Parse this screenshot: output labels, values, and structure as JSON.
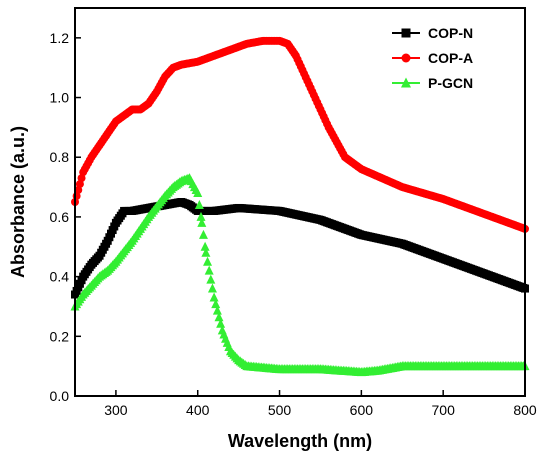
{
  "chart_data": {
    "type": "scatter",
    "title": "",
    "xlabel": "Wavelength (nm)",
    "ylabel": "Absorbance (a.u.)",
    "xlim": [
      250,
      800
    ],
    "ylim": [
      0.0,
      1.3
    ],
    "xticks": [
      300,
      400,
      500,
      600,
      700,
      800
    ],
    "xtick_labels": [
      "300",
      "400",
      "500",
      "600",
      "700",
      "800"
    ],
    "yticks": [
      0.0,
      0.2,
      0.4,
      0.6,
      0.8,
      1.0,
      1.2
    ],
    "ytick_labels": [
      "0.0",
      "0.2",
      "0.4",
      "0.6",
      "0.8",
      "1.0",
      "1.2"
    ],
    "grid": false,
    "legend_position": "top-right",
    "series": [
      {
        "name": "COP-N",
        "color": "#000000",
        "marker": "square",
        "x": [
          250,
          260,
          270,
          280,
          290,
          300,
          310,
          320,
          340,
          360,
          380,
          390,
          400,
          420,
          450,
          500,
          550,
          600,
          650,
          700,
          750,
          800
        ],
        "y": [
          0.34,
          0.4,
          0.44,
          0.47,
          0.52,
          0.58,
          0.62,
          0.62,
          0.63,
          0.64,
          0.65,
          0.64,
          0.62,
          0.62,
          0.63,
          0.62,
          0.59,
          0.54,
          0.51,
          0.46,
          0.41,
          0.36
        ]
      },
      {
        "name": "COP-A",
        "color": "#ff0000",
        "marker": "circle",
        "x": [
          250,
          260,
          270,
          280,
          290,
          300,
          310,
          320,
          330,
          340,
          350,
          360,
          370,
          380,
          400,
          420,
          440,
          460,
          480,
          500,
          510,
          520,
          530,
          540,
          550,
          560,
          570,
          580,
          600,
          650,
          700,
          750,
          800
        ],
        "y": [
          0.65,
          0.75,
          0.8,
          0.84,
          0.88,
          0.92,
          0.94,
          0.96,
          0.96,
          0.98,
          1.02,
          1.07,
          1.1,
          1.11,
          1.12,
          1.14,
          1.16,
          1.18,
          1.19,
          1.19,
          1.18,
          1.14,
          1.08,
          1.02,
          0.96,
          0.9,
          0.85,
          0.8,
          0.76,
          0.7,
          0.66,
          0.61,
          0.56
        ]
      },
      {
        "name": "P-GCN",
        "color": "#33ee33",
        "marker": "triangle",
        "x": [
          250,
          260,
          270,
          280,
          290,
          300,
          320,
          340,
          360,
          370,
          380,
          390,
          400,
          405,
          410,
          420,
          430,
          440,
          450,
          460,
          480,
          500,
          550,
          600,
          620,
          650,
          700,
          750,
          800
        ],
        "y": [
          0.3,
          0.34,
          0.37,
          0.4,
          0.42,
          0.45,
          0.52,
          0.6,
          0.67,
          0.7,
          0.72,
          0.73,
          0.68,
          0.58,
          0.48,
          0.33,
          0.22,
          0.15,
          0.12,
          0.1,
          0.095,
          0.09,
          0.09,
          0.08,
          0.085,
          0.1,
          0.1,
          0.1,
          0.1
        ]
      }
    ]
  }
}
